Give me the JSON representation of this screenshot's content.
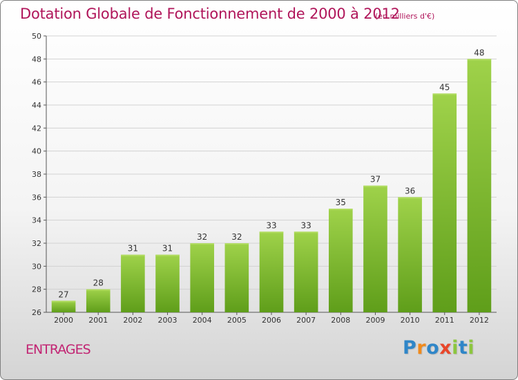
{
  "header": {
    "title": "Dotation Globale de Fonctionnement de 2000 à 2012",
    "unit_note": "(en milliers d'€)"
  },
  "footer": {
    "place_name": "ENTRAGES",
    "logo_text": "Proxiti",
    "logo_letters": [
      {
        "char": "P",
        "color": "#2f86c8"
      },
      {
        "char": "r",
        "color": "#f08a1c"
      },
      {
        "char": "o",
        "color": "#2f86c8"
      },
      {
        "char": "x",
        "color": "#e8462a"
      },
      {
        "char": "i",
        "color": "#8cc63f"
      },
      {
        "char": "t",
        "color": "#2f86c8"
      },
      {
        "char": "i",
        "color": "#8cc63f"
      }
    ]
  },
  "colors": {
    "title": "#b0155a",
    "bar_light": "#9fd24a",
    "bar_dark": "#5f9e1a",
    "grid": "#d2d2d2",
    "axis": "#555555"
  },
  "chart_data": {
    "type": "bar",
    "title": "Dotation Globale de Fonctionnement de 2000 à 2012",
    "subtitle": "(en milliers d'€)",
    "xlabel": "",
    "ylabel": "",
    "categories": [
      "2000",
      "2001",
      "2002",
      "2003",
      "2004",
      "2005",
      "2006",
      "2007",
      "2008",
      "2009",
      "2010",
      "2011",
      "2012"
    ],
    "values": [
      27,
      28,
      31,
      31,
      32,
      32,
      33,
      33,
      35,
      37,
      36,
      45,
      48
    ],
    "value_labels": [
      "27",
      "28",
      "31",
      "31",
      "32",
      "32",
      "33",
      "33",
      "35",
      "37",
      "36",
      "45",
      "48"
    ],
    "ylim": [
      26,
      50
    ],
    "yticks": [
      26,
      28,
      30,
      32,
      34,
      36,
      38,
      40,
      42,
      44,
      46,
      48,
      50
    ],
    "grid": true,
    "legend": "none"
  }
}
